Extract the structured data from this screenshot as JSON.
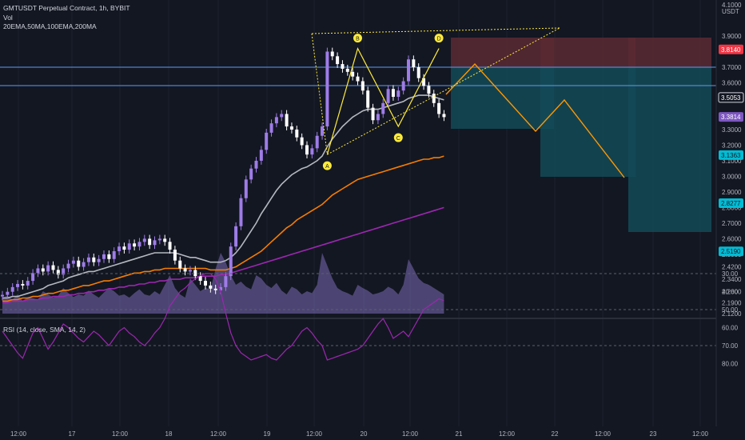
{
  "header": {
    "title": "GMTUSDT Perpetual Contract, 1h, BYBIT",
    "vol_label": "Vol",
    "ma_label": "20EMA,50MA,100EMA,200MA",
    "rsi_label": "RSI (14, close, SMA, 14, 2)"
  },
  "colors": {
    "background": "#131722",
    "up": "#9f7ce8",
    "down": "#ffffff",
    "ema20": "#b5b8bf",
    "ma50": "#f57c00",
    "ema100": "#9c27b0",
    "pattern": "#ffeb3b",
    "projection": "#ff9800",
    "stop_zone": "#5b2a33",
    "target_zone": "#144a57",
    "level_line": "#5b9cf6",
    "rsi_line": "#9c27b0"
  },
  "chart_data": [
    {
      "type": "line",
      "title": "GMTUSDT Perpetual Contract, 1h, BYBIT",
      "xlabel": "",
      "ylabel": "",
      "unit": "USDT",
      "ylim": [
        2.12,
        4.1
      ],
      "y_ticks": [
        "4.1000",
        "3.9000",
        "3.7000",
        "3.6000",
        "3.5000",
        "3.3000",
        "3.2000",
        "3.1000",
        "3.0000",
        "2.9000",
        "2.8000",
        "2.7000",
        "2.6000",
        "2.5000",
        "2.4200",
        "2.3400",
        "2.2600",
        "2.1900",
        "2.1200"
      ],
      "x_ticks": [
        "12:00",
        "17",
        "12:00",
        "18",
        "12:00",
        "19",
        "12:00",
        "20",
        "12:00",
        "21",
        "12:00",
        "22",
        "12:00",
        "23",
        "12:00"
      ],
      "price_close": [
        2.24,
        2.26,
        2.29,
        2.31,
        2.3,
        2.33,
        2.38,
        2.41,
        2.39,
        2.43,
        2.4,
        2.37,
        2.41,
        2.44,
        2.46,
        2.42,
        2.45,
        2.48,
        2.45,
        2.47,
        2.5,
        2.47,
        2.52,
        2.55,
        2.53,
        2.57,
        2.55,
        2.58,
        2.6,
        2.56,
        2.59,
        2.6,
        2.58,
        2.53,
        2.46,
        2.41,
        2.39,
        2.4,
        2.36,
        2.33,
        2.3,
        2.28,
        2.27,
        2.29,
        2.36,
        2.55,
        2.68,
        2.86,
        2.98,
        3.05,
        3.1,
        3.17,
        3.28,
        3.34,
        3.38,
        3.4,
        3.32,
        3.3,
        3.25,
        3.2,
        3.14,
        3.18,
        3.26,
        3.32,
        3.8,
        3.77,
        3.72,
        3.69,
        3.67,
        3.64,
        3.61,
        3.55,
        3.44,
        3.36,
        3.4,
        3.47,
        3.56,
        3.51,
        3.55,
        3.61,
        3.75,
        3.7,
        3.63,
        3.58,
        3.53,
        3.47,
        3.4,
        3.38
      ],
      "series": [
        {
          "name": "20EMA",
          "values": [
            2.22,
            2.22,
            2.23,
            2.23,
            2.24,
            2.25,
            2.26,
            2.27,
            2.28,
            2.3,
            2.31,
            2.32,
            2.33,
            2.35,
            2.36,
            2.37,
            2.38,
            2.39,
            2.39,
            2.4,
            2.41,
            2.42,
            2.43,
            2.44,
            2.45,
            2.46,
            2.47,
            2.48,
            2.49,
            2.5,
            2.51,
            2.51,
            2.51,
            2.51,
            2.51,
            2.5,
            2.49,
            2.48,
            2.48,
            2.47,
            2.46,
            2.45,
            2.45,
            2.45,
            2.46,
            2.48,
            2.51,
            2.55,
            2.6,
            2.65,
            2.7,
            2.76,
            2.81,
            2.86,
            2.91,
            2.95,
            2.98,
            3.01,
            3.03,
            3.05,
            3.06,
            3.08,
            3.1,
            3.13,
            3.19,
            3.24,
            3.28,
            3.32,
            3.35,
            3.38,
            3.4,
            3.42,
            3.43,
            3.43,
            3.43,
            3.44,
            3.45,
            3.46,
            3.47,
            3.48,
            3.5,
            3.51,
            3.52,
            3.52,
            3.52,
            3.51,
            3.5,
            3.49
          ]
        },
        {
          "name": "50MA",
          "values": [
            2.2,
            2.2,
            2.21,
            2.21,
            2.22,
            2.22,
            2.23,
            2.23,
            2.24,
            2.25,
            2.25,
            2.26,
            2.27,
            2.27,
            2.28,
            2.29,
            2.3,
            2.3,
            2.31,
            2.32,
            2.33,
            2.33,
            2.34,
            2.35,
            2.36,
            2.37,
            2.38,
            2.38,
            2.39,
            2.39,
            2.4,
            2.4,
            2.41,
            2.41,
            2.41,
            2.41,
            2.41,
            2.41,
            2.41,
            2.41,
            2.41,
            2.4,
            2.4,
            2.4,
            2.4,
            2.41,
            2.42,
            2.44,
            2.46,
            2.48,
            2.5,
            2.52,
            2.55,
            2.58,
            2.61,
            2.64,
            2.67,
            2.69,
            2.72,
            2.74,
            2.76,
            2.78,
            2.8,
            2.82,
            2.85,
            2.88,
            2.9,
            2.92,
            2.94,
            2.96,
            2.98,
            2.99,
            3.0,
            3.01,
            3.02,
            3.03,
            3.04,
            3.05,
            3.06,
            3.07,
            3.08,
            3.09,
            3.1,
            3.11,
            3.11,
            3.12,
            3.12,
            3.13
          ]
        },
        {
          "name": "100EMA",
          "values": [
            2.19,
            2.19,
            2.2,
            2.2,
            2.2,
            2.21,
            2.21,
            2.21,
            2.22,
            2.22,
            2.23,
            2.23,
            2.23,
            2.24,
            2.24,
            2.25,
            2.25,
            2.26,
            2.26,
            2.27,
            2.27,
            2.28,
            2.28,
            2.29,
            2.29,
            2.3,
            2.3,
            2.31,
            2.31,
            2.32,
            2.32,
            2.33,
            2.33,
            2.34,
            2.34,
            2.34,
            2.35,
            2.35,
            2.35,
            2.36,
            2.36,
            2.36,
            2.36,
            2.37,
            2.37,
            2.38,
            2.39,
            2.4,
            2.41,
            2.42,
            2.43,
            2.44,
            2.45,
            2.46,
            2.47,
            2.48,
            2.49,
            2.5,
            2.51,
            2.52,
            2.53,
            2.54,
            2.55,
            2.56,
            2.57,
            2.58,
            2.59,
            2.6,
            2.61,
            2.62,
            2.63,
            2.64,
            2.65,
            2.66,
            2.67,
            2.68,
            2.69,
            2.7,
            2.71,
            2.72,
            2.73,
            2.74,
            2.75,
            2.76,
            2.77,
            2.78,
            2.79,
            2.8
          ]
        }
      ],
      "pattern_points": [
        {
          "label": "A",
          "bar": 64,
          "price": 3.14
        },
        {
          "label": "B",
          "bar": 70,
          "price": 3.82
        },
        {
          "label": "C",
          "bar": 78,
          "price": 3.32
        },
        {
          "label": "D",
          "bar": 86,
          "price": 3.82
        }
      ],
      "price_labels": [
        {
          "value": "3.8140",
          "kind": "stop"
        },
        {
          "value": "3.5053",
          "kind": "level"
        },
        {
          "value": "3.3814",
          "kind": "last"
        },
        {
          "value": "3.1363",
          "kind": "target"
        },
        {
          "value": "2.8277",
          "kind": "target"
        },
        {
          "value": "2.5190",
          "kind": "target"
        }
      ]
    },
    {
      "type": "area",
      "title": "Vol",
      "values": [
        0.25,
        0.28,
        0.22,
        0.3,
        0.2,
        0.26,
        0.24,
        0.22,
        0.35,
        0.3,
        0.25,
        0.28,
        0.4,
        0.32,
        0.26,
        0.3,
        0.28,
        0.36,
        0.3,
        0.25,
        0.33,
        0.4,
        0.35,
        0.28,
        0.3,
        0.25,
        0.32,
        0.38,
        0.3,
        0.28,
        0.35,
        0.3,
        0.45,
        0.6,
        0.4,
        0.3,
        0.25,
        0.55,
        0.45,
        0.35,
        0.4,
        0.38,
        0.7,
        0.95,
        0.8,
        0.6,
        0.45,
        0.5,
        0.42,
        0.38,
        0.6,
        0.55,
        0.45,
        0.4,
        0.48,
        0.36,
        0.3,
        0.42,
        0.38,
        0.3,
        0.35,
        0.32,
        0.45,
        0.95,
        0.75,
        0.55,
        0.4,
        0.35,
        0.32,
        0.28,
        0.45,
        0.4,
        0.36,
        0.3,
        0.32,
        0.35,
        0.42,
        0.38,
        0.3,
        0.45,
        0.85,
        0.7,
        0.55,
        0.48,
        0.45,
        0.4,
        0.35,
        0.3
      ]
    },
    {
      "type": "line",
      "title": "RSI (14, close, SMA, 14, 2)",
      "ylim": [
        30,
        80
      ],
      "y_ticks": [
        "80.00",
        "70.00",
        "60.00",
        "50.00",
        "40.00",
        "30.00"
      ],
      "bands": [
        30,
        70
      ],
      "values": [
        62,
        66,
        70,
        74,
        77,
        70,
        63,
        60,
        66,
        72,
        68,
        63,
        58,
        60,
        63,
        66,
        68,
        65,
        62,
        64,
        67,
        70,
        66,
        62,
        60,
        63,
        65,
        68,
        70,
        67,
        63,
        60,
        55,
        48,
        44,
        40,
        38,
        35,
        33,
        31,
        30,
        30,
        33,
        40,
        52,
        63,
        70,
        74,
        76,
        78,
        77,
        76,
        75,
        77,
        78,
        75,
        72,
        70,
        66,
        62,
        60,
        63,
        67,
        70,
        78,
        77,
        76,
        75,
        74,
        73,
        72,
        70,
        66,
        62,
        58,
        55,
        60,
        66,
        64,
        62,
        65,
        60,
        55,
        50,
        48,
        46,
        44,
        45
      ]
    }
  ]
}
